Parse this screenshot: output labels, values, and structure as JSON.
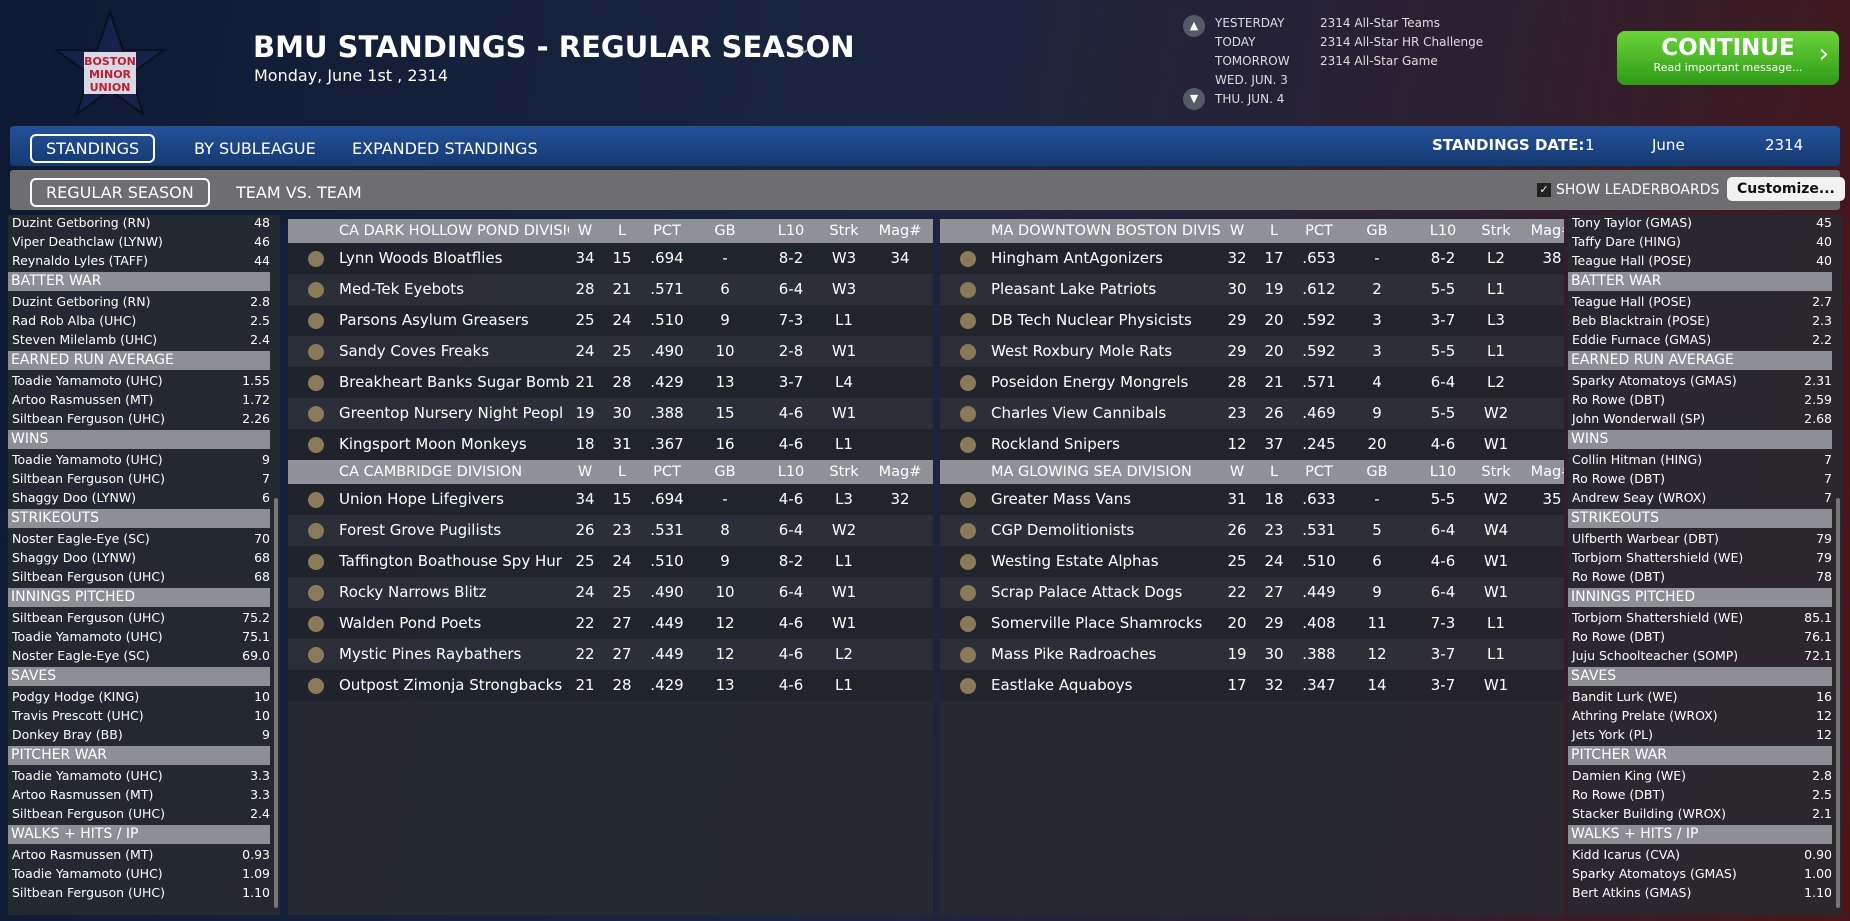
{
  "header": {
    "logo": [
      "BOSTON",
      "MINOR",
      "UNION"
    ],
    "title": "BMU STANDINGS - REGULAR SEASON",
    "date": "Monday, June 1st , 2314"
  },
  "schedule": [
    {
      "day": "YESTERDAY",
      "event": "2314 All-Star Teams"
    },
    {
      "day": "TODAY",
      "event": "2314 All-Star HR Challenge"
    },
    {
      "day": "TOMORROW",
      "event": "2314 All-Star Game"
    },
    {
      "day": "WED. JUN. 3"
    },
    {
      "day": "THU. JUN. 4"
    }
  ],
  "continue": {
    "label": "CONTINUE",
    "sub": "Read important message..."
  },
  "tabs": [
    "STANDINGS",
    "BY SUBLEAGUE",
    "EXPANDED STANDINGS"
  ],
  "standings_date": {
    "label": "STANDINGS DATE:",
    "day": "1",
    "month": "June",
    "year": "2314"
  },
  "subtabs": [
    "REGULAR SEASON",
    "TEAM VS. TEAM"
  ],
  "show_leaderboards": "SHOW LEADERBOARDS",
  "customize": "Customize...",
  "columns": [
    "W",
    "L",
    "PCT",
    "GB",
    "L10",
    "Strk",
    "Mag#"
  ],
  "divisions": [
    {
      "name": "CA DARK HOLLOW POND DIVISIO",
      "teams": [
        [
          "Lynn Woods Bloatflies",
          "34",
          "15",
          ".694",
          "-",
          "8-2",
          "W3",
          "34"
        ],
        [
          "Med-Tek Eyebots",
          "28",
          "21",
          ".571",
          "6",
          "6-4",
          "W3"
        ],
        [
          "Parsons Asylum Greasers",
          "25",
          "24",
          ".510",
          "9",
          "7-3",
          "L1"
        ],
        [
          "Sandy Coves Freaks",
          "24",
          "25",
          ".490",
          "10",
          "2-8",
          "W1"
        ],
        [
          "Breakheart Banks Sugar Bomb",
          "21",
          "28",
          ".429",
          "13",
          "3-7",
          "L4"
        ],
        [
          "Greentop Nursery Night Peopl",
          "19",
          "30",
          ".388",
          "15",
          "4-6",
          "W1"
        ],
        [
          "Kingsport Moon Monkeys",
          "18",
          "31",
          ".367",
          "16",
          "4-6",
          "L1"
        ]
      ]
    },
    {
      "name": "CA CAMBRIDGE DIVISION",
      "teams": [
        [
          "Union Hope Lifegivers",
          "34",
          "15",
          ".694",
          "-",
          "4-6",
          "L3",
          "32"
        ],
        [
          "Forest Grove Pugilists",
          "26",
          "23",
          ".531",
          "8",
          "6-4",
          "W2"
        ],
        [
          "Taffington Boathouse Spy Hur",
          "25",
          "24",
          ".510",
          "9",
          "8-2",
          "L1"
        ],
        [
          "Rocky Narrows Blitz",
          "24",
          "25",
          ".490",
          "10",
          "6-4",
          "W1"
        ],
        [
          "Walden Pond Poets",
          "22",
          "27",
          ".449",
          "12",
          "4-6",
          "W1"
        ],
        [
          "Mystic Pines Raybathers",
          "22",
          "27",
          ".449",
          "12",
          "4-6",
          "L2"
        ],
        [
          "Outpost Zimonja Strongbacks",
          "21",
          "28",
          ".429",
          "13",
          "4-6",
          "L1"
        ]
      ]
    },
    {
      "name": "MA DOWNTOWN BOSTON DIVIS",
      "teams": [
        [
          "Hingham AntAgonizers",
          "32",
          "17",
          ".653",
          "-",
          "8-2",
          "L2",
          "38"
        ],
        [
          "Pleasant Lake Patriots",
          "30",
          "19",
          ".612",
          "2",
          "5-5",
          "L1"
        ],
        [
          "DB Tech Nuclear Physicists",
          "29",
          "20",
          ".592",
          "3",
          "3-7",
          "L3"
        ],
        [
          "West Roxbury Mole Rats",
          "29",
          "20",
          ".592",
          "3",
          "5-5",
          "L1"
        ],
        [
          "Poseidon Energy Mongrels",
          "28",
          "21",
          ".571",
          "4",
          "6-4",
          "L2"
        ],
        [
          "Charles View Cannibals",
          "23",
          "26",
          ".469",
          "9",
          "5-5",
          "W2"
        ],
        [
          "Rockland Snipers",
          "12",
          "37",
          ".245",
          "20",
          "4-6",
          "W1"
        ]
      ]
    },
    {
      "name": "MA GLOWING SEA DIVISION",
      "teams": [
        [
          "Greater Mass Vans",
          "31",
          "18",
          ".633",
          "-",
          "5-5",
          "W2",
          "35"
        ],
        [
          "CGP Demolitionists",
          "26",
          "23",
          ".531",
          "5",
          "6-4",
          "W4"
        ],
        [
          "Westing Estate Alphas",
          "25",
          "24",
          ".510",
          "6",
          "4-6",
          "W1"
        ],
        [
          "Scrap Palace Attack Dogs",
          "22",
          "27",
          ".449",
          "9",
          "6-4",
          "W1"
        ],
        [
          "Somerville Place Shamrocks",
          "20",
          "29",
          ".408",
          "11",
          "7-3",
          "L1"
        ],
        [
          "Mass Pike Radroaches",
          "19",
          "30",
          ".388",
          "12",
          "3-7",
          "L1"
        ],
        [
          "Eastlake Aquaboys",
          "17",
          "32",
          ".347",
          "14",
          "3-7",
          "W1"
        ]
      ]
    }
  ],
  "leaders": [
    [
      {
        "rows": [
          [
            "Duzint Getboring (RN)",
            "48"
          ],
          [
            "Viper Deathclaw (LYNW)",
            "46"
          ],
          [
            "Reynaldo Lyles (TAFF)",
            "44"
          ]
        ]
      },
      {
        "title": "BATTER WAR",
        "rows": [
          [
            "Duzint Getboring (RN)",
            "2.8"
          ],
          [
            "Rad Rob Alba (UHC)",
            "2.5"
          ],
          [
            "Steven Milelamb (UHC)",
            "2.4"
          ]
        ]
      },
      {
        "title": "EARNED RUN AVERAGE",
        "rows": [
          [
            "Toadie Yamamoto (UHC)",
            "1.55"
          ],
          [
            "Artoo Rasmussen (MT)",
            "1.72"
          ],
          [
            "Siltbean Ferguson (UHC)",
            "2.26"
          ]
        ]
      },
      {
        "title": "WINS",
        "rows": [
          [
            "Toadie Yamamoto (UHC)",
            "9"
          ],
          [
            "Siltbean Ferguson (UHC)",
            "7"
          ],
          [
            "Shaggy Doo (LYNW)",
            "6"
          ]
        ]
      },
      {
        "title": "STRIKEOUTS",
        "rows": [
          [
            "Noster Eagle-Eye (SC)",
            "70"
          ],
          [
            "Shaggy Doo (LYNW)",
            "68"
          ],
          [
            "Siltbean Ferguson (UHC)",
            "68"
          ]
        ]
      },
      {
        "title": "INNINGS PITCHED",
        "rows": [
          [
            "Siltbean Ferguson (UHC)",
            "75.2"
          ],
          [
            "Toadie Yamamoto (UHC)",
            "75.1"
          ],
          [
            "Noster Eagle-Eye (SC)",
            "69.0"
          ]
        ]
      },
      {
        "title": "SAVES",
        "rows": [
          [
            "Podgy Hodge (KING)",
            "10"
          ],
          [
            "Travis Prescott (UHC)",
            "10"
          ],
          [
            "Donkey Bray (BB)",
            "9"
          ]
        ]
      },
      {
        "title": "PITCHER WAR",
        "rows": [
          [
            "Toadie Yamamoto (UHC)",
            "3.3"
          ],
          [
            "Artoo Rasmussen (MT)",
            "3.3"
          ],
          [
            "Siltbean Ferguson (UHC)",
            "2.4"
          ]
        ]
      },
      {
        "title": "WALKS + HITS / IP",
        "rows": [
          [
            "Artoo Rasmussen (MT)",
            "0.93"
          ],
          [
            "Toadie Yamamoto (UHC)",
            "1.09"
          ],
          [
            "Siltbean Ferguson (UHC)",
            "1.10"
          ]
        ]
      }
    ],
    [
      {
        "rows": [
          [
            "Tony Taylor (GMAS)",
            "45"
          ],
          [
            "Taffy Dare (HING)",
            "40"
          ],
          [
            "Teague Hall (POSE)",
            "40"
          ]
        ]
      },
      {
        "title": "BATTER WAR",
        "rows": [
          [
            "Teague Hall (POSE)",
            "2.7"
          ],
          [
            "Beb Blacktrain (POSE)",
            "2.3"
          ],
          [
            "Eddie Furnace (GMAS)",
            "2.2"
          ]
        ]
      },
      {
        "title": "EARNED RUN AVERAGE",
        "rows": [
          [
            "Sparky Atomatoys (GMAS)",
            "2.31"
          ],
          [
            "Ro Rowe (DBT)",
            "2.59"
          ],
          [
            "John Wonderwall (SP)",
            "2.68"
          ]
        ]
      },
      {
        "title": "WINS",
        "rows": [
          [
            "Collin Hitman (HING)",
            "7"
          ],
          [
            "Ro Rowe (DBT)",
            "7"
          ],
          [
            "Andrew Seay (WROX)",
            "7"
          ]
        ]
      },
      {
        "title": "STRIKEOUTS",
        "rows": [
          [
            "Ulfberth Warbear (DBT)",
            "79"
          ],
          [
            "Torbjorn Shattershield (WE)",
            "79"
          ],
          [
            "Ro Rowe (DBT)",
            "78"
          ]
        ]
      },
      {
        "title": "INNINGS PITCHED",
        "rows": [
          [
            "Torbjorn Shattershield (WE)",
            "85.1"
          ],
          [
            "Ro Rowe (DBT)",
            "76.1"
          ],
          [
            "Juju Schoolteacher (SOMP)",
            "72.1"
          ]
        ]
      },
      {
        "title": "SAVES",
        "rows": [
          [
            "Bandit Lurk (WE)",
            "16"
          ],
          [
            "Athring Prelate (WROX)",
            "12"
          ],
          [
            "Jets York (PL)",
            "12"
          ]
        ]
      },
      {
        "title": "PITCHER WAR",
        "rows": [
          [
            "Damien King (WE)",
            "2.8"
          ],
          [
            "Ro Rowe (DBT)",
            "2.5"
          ],
          [
            "Stacker Building (WROX)",
            "2.1"
          ]
        ]
      },
      {
        "title": "WALKS + HITS / IP",
        "rows": [
          [
            "Kidd Icarus (CVA)",
            "0.90"
          ],
          [
            "Sparky Atomatoys (GMAS)",
            "1.00"
          ],
          [
            "Bert Atkins (GMAS)",
            "1.10"
          ]
        ]
      }
    ]
  ]
}
